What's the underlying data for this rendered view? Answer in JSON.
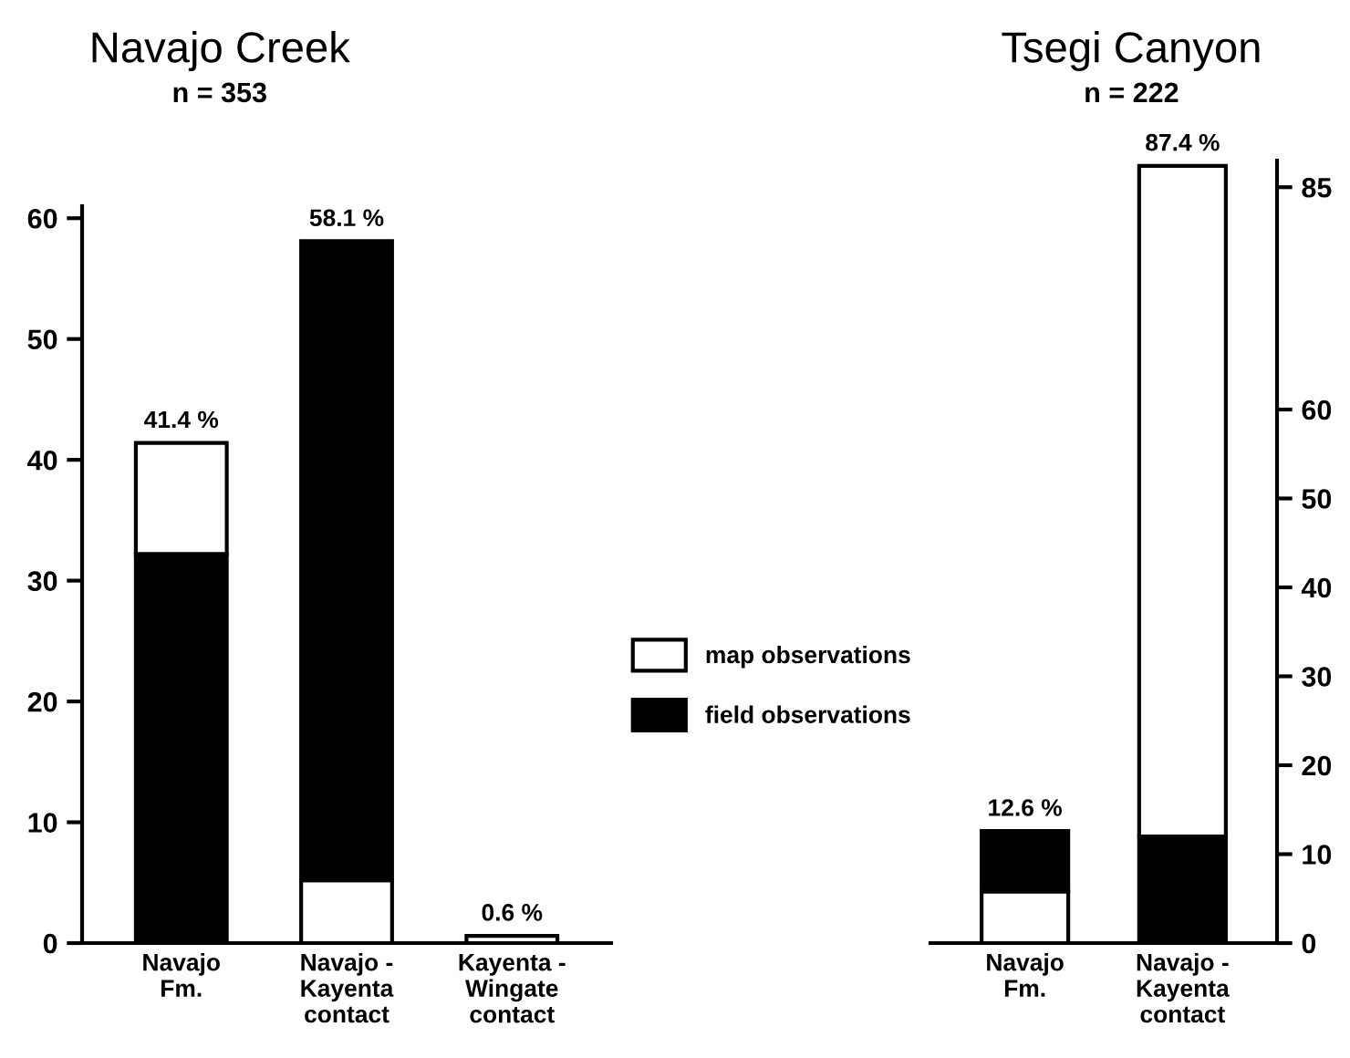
{
  "chart_data": [
    {
      "type": "bar",
      "title": "Navajo Creek",
      "subtitle": "n = 353",
      "categories": [
        "Navajo\nFm.",
        "Navajo -\nKayenta\ncontact",
        "Kayenta -\nWingate\ncontact"
      ],
      "series": [
        {
          "name": "map observations",
          "color": "#ffffff",
          "values": [
            9.2,
            5.2,
            0.6
          ],
          "base": [
            32.2,
            0,
            0
          ]
        },
        {
          "name": "field observations",
          "color": "#000000",
          "values": [
            32.2,
            52.9,
            null
          ],
          "base": [
            0,
            5.2,
            null
          ]
        }
      ],
      "totals": [
        "41.4 %",
        "58.1 %",
        "0.6 %"
      ],
      "ylim": [
        0,
        61
      ],
      "yticks": [
        0,
        10,
        20,
        30,
        40,
        50,
        60
      ],
      "legend": "right",
      "grid": false
    },
    {
      "type": "bar",
      "title": "Tsegi Canyon",
      "subtitle": "n = 222",
      "categories": [
        "Navajo\nFm.",
        "Navajo -\nKayenta\ncontact"
      ],
      "series": [
        {
          "color": "#ffffff",
          "values": [
            5.8,
            75.4
          ],
          "base": [
            0,
            12
          ]
        },
        {
          "color": "#000000",
          "values": [
            6.8,
            12
          ],
          "base": [
            5.8,
            0
          ]
        }
      ],
      "totals": [
        "12.6 %",
        "87.4 %"
      ],
      "ylim": [
        0,
        88
      ],
      "yticks": [
        0,
        10,
        20,
        30,
        40,
        50,
        60,
        85
      ],
      "grid": false
    }
  ]
}
